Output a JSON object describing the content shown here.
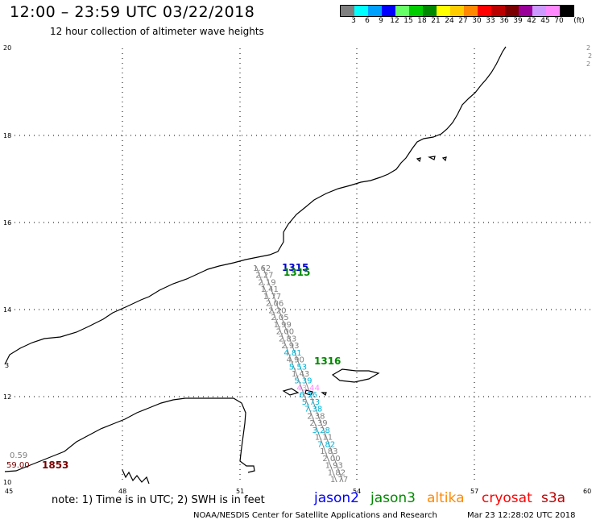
{
  "header": {
    "title": "12:00 – 23:59 UTC 03/22/2018",
    "subtitle": "12 hour collection of altimeter wave heights"
  },
  "color_scale": {
    "unit": "(ft)",
    "swatches": [
      {
        "label": "3",
        "color": "#7f7f7f"
      },
      {
        "label": "6",
        "color": "#00ffff"
      },
      {
        "label": "9",
        "color": "#00a0ff"
      },
      {
        "label": "12",
        "color": "#0000ff"
      },
      {
        "label": "15",
        "color": "#66ff66"
      },
      {
        "label": "18",
        "color": "#00cc00"
      },
      {
        "label": "21",
        "color": "#008800"
      },
      {
        "label": "24",
        "color": "#ffff00"
      },
      {
        "label": "27",
        "color": "#ffcc00"
      },
      {
        "label": "30",
        "color": "#ff8800"
      },
      {
        "label": "33",
        "color": "#ff0000"
      },
      {
        "label": "36",
        "color": "#bb0000"
      },
      {
        "label": "39",
        "color": "#7a0000"
      },
      {
        "label": "42",
        "color": "#990099"
      },
      {
        "label": "45",
        "color": "#cc99ff"
      },
      {
        "label": "70",
        "color": "#ff88ff"
      },
      {
        "label": "",
        "color": "#000000"
      }
    ]
  },
  "axes": {
    "lon_ticks": [
      "45",
      "48",
      "51",
      "54",
      "57",
      "60"
    ],
    "lat_ticks": [
      "20",
      "18",
      "16",
      "14",
      "12",
      "10"
    ]
  },
  "map_labels": {
    "pass_1315_blue": "1315",
    "pass_1315_green": "1315",
    "pass_1316": "1316",
    "pass_1853": "1853",
    "west_value_1": "0.59",
    "west_value_2": "59.00",
    "edge_value": "3"
  },
  "track_values": [
    {
      "v": "1.62",
      "color": "#7f7f7f"
    },
    {
      "v": "2.27",
      "color": "#7f7f7f"
    },
    {
      "v": "2.19",
      "color": "#7f7f7f"
    },
    {
      "v": "1.41",
      "color": "#7f7f7f"
    },
    {
      "v": "1.77",
      "color": "#7f7f7f"
    },
    {
      "v": "2.06",
      "color": "#7f7f7f"
    },
    {
      "v": "2.20",
      "color": "#7f7f7f"
    },
    {
      "v": "2.05",
      "color": "#7f7f7f"
    },
    {
      "v": "1.99",
      "color": "#7f7f7f"
    },
    {
      "v": "2.00",
      "color": "#7f7f7f"
    },
    {
      "v": "2.83",
      "color": "#7f7f7f"
    },
    {
      "v": "2.93",
      "color": "#7f7f7f"
    },
    {
      "v": "4.81",
      "color": "#00b4d8"
    },
    {
      "v": "4.90",
      "color": "#7f7f7f"
    },
    {
      "v": "5.53",
      "color": "#00b4d8"
    },
    {
      "v": "1.43",
      "color": "#7f7f7f"
    },
    {
      "v": "5.39",
      "color": "#00b4d8"
    },
    {
      "v": "43.44",
      "color": "#ff88ff"
    },
    {
      "v": "6.56",
      "color": "#00b4d8"
    },
    {
      "v": "5.73",
      "color": "#00b4d8"
    },
    {
      "v": "7.38",
      "color": "#00b4d8"
    },
    {
      "v": "2.38",
      "color": "#7f7f7f"
    },
    {
      "v": "2.39",
      "color": "#7f7f7f"
    },
    {
      "v": "3.28",
      "color": "#00b4d8"
    },
    {
      "v": "1.11",
      "color": "#7f7f7f"
    },
    {
      "v": "7.82",
      "color": "#00b4d8"
    },
    {
      "v": "1.83",
      "color": "#7f7f7f"
    },
    {
      "v": "2.00",
      "color": "#7f7f7f"
    },
    {
      "v": "1.93",
      "color": "#7f7f7f"
    },
    {
      "v": "1.82",
      "color": "#7f7f7f"
    },
    {
      "v": "1.77",
      "color": "#7f7f7f"
    }
  ],
  "footer": {
    "note": "note: 1) Time is in UTC; 2) SWH is in feet",
    "satellites": [
      {
        "name": "jason2",
        "color": "#0000ff"
      },
      {
        "name": "jason3",
        "color": "#008800"
      },
      {
        "name": "altika",
        "color": "#ff8800"
      },
      {
        "name": "cryosat",
        "color": "#ff0000"
      },
      {
        "name": "s3a",
        "color": "#bb0000"
      }
    ],
    "credit": "NOAA/NESDIS Center for Satellite Applications and Research",
    "timestamp": "Mar 23 12:28:02 UTC 2018"
  }
}
